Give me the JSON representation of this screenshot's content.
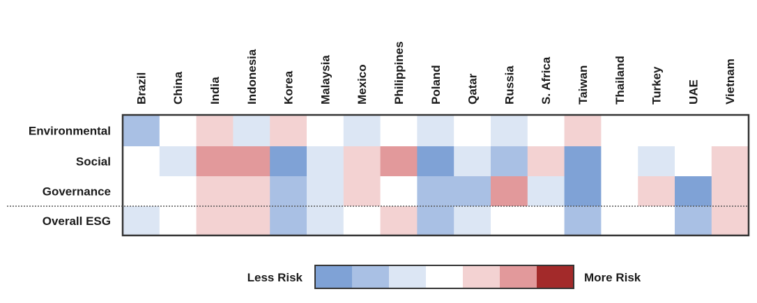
{
  "chart_data": {
    "type": "heatmap",
    "columns": [
      "Brazil",
      "China",
      "India",
      "Indonesia",
      "Korea",
      "Malaysia",
      "Mexico",
      "Philippines",
      "Poland",
      "Qatar",
      "Russia",
      "S. Africa",
      "Taiwan",
      "Thailand",
      "Turkey",
      "UAE",
      "Vietnam"
    ],
    "rows": [
      "Environmental",
      "Social",
      "Governance",
      "Overall ESG"
    ],
    "scale_note": "values -3 (less risk, blue) to +3 (more risk, red), 0 = neutral",
    "values": [
      [
        -2,
        0,
        1,
        -1,
        1,
        0,
        -1,
        0,
        -1,
        0,
        -1,
        0,
        1,
        0,
        0,
        0,
        0
      ],
      [
        0,
        -1,
        2,
        2,
        -3,
        -1,
        1,
        2,
        -3,
        -1,
        -2,
        1,
        -3,
        0,
        -1,
        0,
        1
      ],
      [
        0,
        0,
        1,
        1,
        -2,
        -1,
        1,
        0,
        -2,
        -2,
        2,
        -1,
        -3,
        0,
        1,
        -3,
        1
      ],
      [
        -1,
        0,
        1,
        1,
        -2,
        -1,
        0,
        1,
        -2,
        -1,
        0,
        0,
        -2,
        0,
        0,
        -2,
        1
      ]
    ],
    "legend": {
      "low_label": "Less Risk",
      "high_label": "More Risk",
      "steps": [
        -3,
        -2,
        -1,
        0,
        1,
        2,
        3
      ]
    },
    "colors": {
      "-3": "#7fa2d6",
      "-2": "#a9c0e4",
      "-1": "#dce6f4",
      "0": "#ffffff",
      "1": "#f3d2d2",
      "2": "#e2999b",
      "3": "#a32a2a"
    }
  }
}
